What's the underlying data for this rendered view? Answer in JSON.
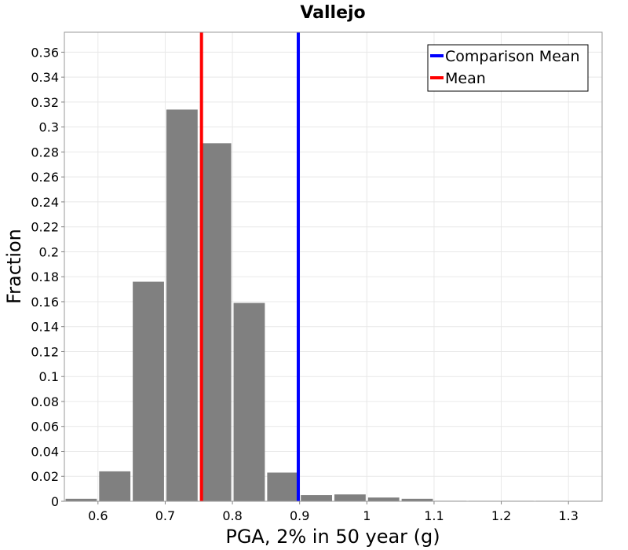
{
  "chart_data": {
    "type": "bar",
    "title": "Vallejo",
    "xlabel": "PGA, 2% in 50 year (g)",
    "ylabel": "Fraction",
    "xlim": [
      0.55,
      1.35
    ],
    "ylim": [
      0,
      0.376
    ],
    "x_ticks": [
      "0.6",
      "0.7",
      "0.8",
      "0.9",
      "1",
      "1.1",
      "1.2",
      "1.3"
    ],
    "y_ticks": [
      "0",
      "0.02",
      "0.04",
      "0.06",
      "0.08",
      "0.1",
      "0.12",
      "0.14",
      "0.16",
      "0.18",
      "0.2",
      "0.22",
      "0.24",
      "0.26",
      "0.28",
      "0.3",
      "0.32",
      "0.34",
      "0.36"
    ],
    "bin_width": 0.05,
    "bar_color": "#808080",
    "bars": [
      {
        "x": 0.575,
        "value": 0.002
      },
      {
        "x": 0.625,
        "value": 0.024
      },
      {
        "x": 0.675,
        "value": 0.176
      },
      {
        "x": 0.725,
        "value": 0.314
      },
      {
        "x": 0.775,
        "value": 0.287
      },
      {
        "x": 0.825,
        "value": 0.159
      },
      {
        "x": 0.875,
        "value": 0.023
      },
      {
        "x": 0.925,
        "value": 0.005
      },
      {
        "x": 0.975,
        "value": 0.0055
      },
      {
        "x": 1.025,
        "value": 0.003
      },
      {
        "x": 1.075,
        "value": 0.002
      },
      {
        "x": 1.125,
        "value": 0.0004
      },
      {
        "x": 1.175,
        "value": 0.0002
      },
      {
        "x": 1.225,
        "value": 0.0001
      },
      {
        "x": 1.275,
        "value": 0.0001
      },
      {
        "x": 1.325,
        "value": 0.0001
      }
    ],
    "lines": [
      {
        "name": "Comparison Mean",
        "x": 0.898,
        "color": "#0000ff"
      },
      {
        "name": "Mean",
        "x": 0.754,
        "color": "#ff0000"
      }
    ],
    "grid": true,
    "legend_position": "top-right"
  }
}
